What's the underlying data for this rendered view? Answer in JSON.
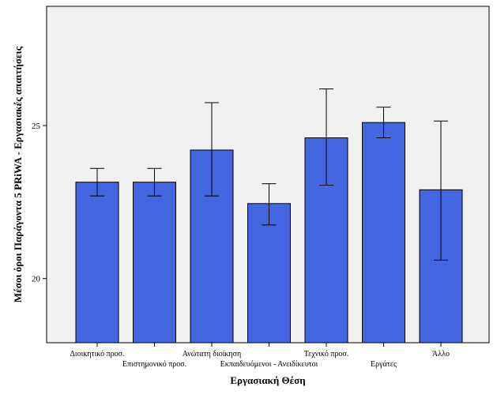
{
  "chart_data": {
    "type": "bar",
    "xlabel": "Εργασιακή Θέση",
    "ylabel": "Μέσοι όροι Παράγοντα 5 PRiWA - Εργασιακές απαιτήσεις",
    "ylim": [
      17.9,
      28.9
    ],
    "yticks": [
      20,
      25
    ],
    "grid": false,
    "categories": [
      "Διοικητικό προσ.",
      "Επιστημονικό προσ.",
      "Ανώτατη διοίκηση",
      "Εκπαιδευόμενοι - Ανειδίκευτοι",
      "Τεχνικό προσ.",
      "Εργάτες",
      "Άλλο"
    ],
    "values": [
      23.15,
      23.15,
      24.2,
      22.45,
      24.6,
      25.1,
      22.9
    ],
    "error_low": [
      22.7,
      22.7,
      22.7,
      21.75,
      23.05,
      24.6,
      20.6
    ],
    "error_high": [
      23.6,
      23.6,
      25.75,
      23.1,
      26.2,
      25.6,
      25.15
    ],
    "colors": {
      "bar": "#4466e0",
      "plot_bg": "#f0f0f0"
    }
  }
}
